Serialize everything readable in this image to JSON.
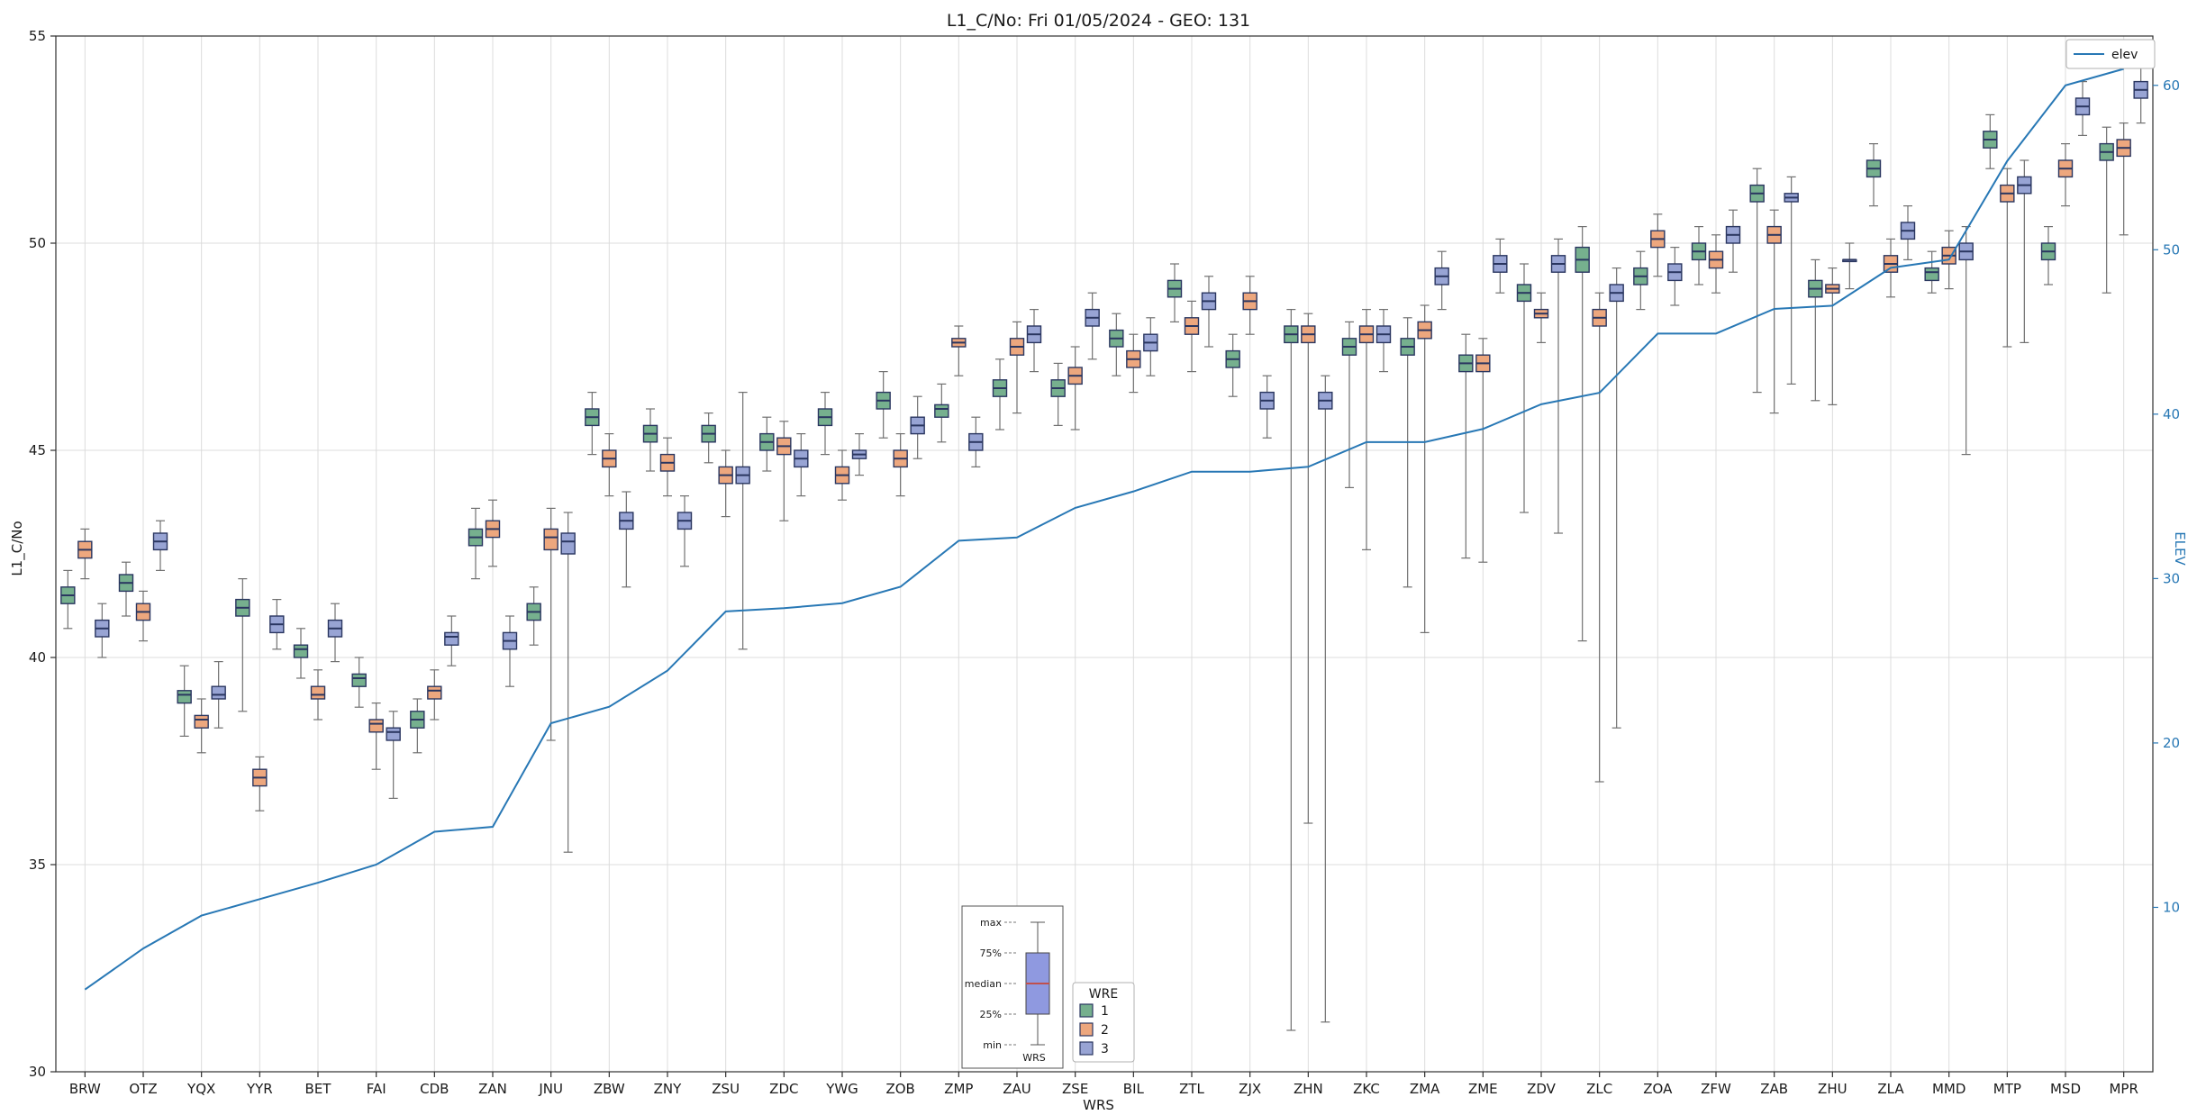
{
  "chart_data": {
    "type": "boxplot",
    "title": "L1_C/No: Fri 01/05/2024 - GEO: 131",
    "xlabel": "WRS",
    "ylabel": "L1_C/No",
    "y2label": "ELEV",
    "ylim": [
      30,
      55
    ],
    "y2lim": [
      0,
      63
    ],
    "yticks_left": [
      30,
      35,
      40,
      45,
      50,
      55
    ],
    "yticks_right": [
      10,
      20,
      30,
      40,
      50,
      60
    ],
    "grid": true,
    "categories": [
      "BRW",
      "OTZ",
      "YQX",
      "YYR",
      "BET",
      "FAI",
      "CDB",
      "ZAN",
      "JNU",
      "ZBW",
      "ZNY",
      "ZSU",
      "ZDC",
      "YWG",
      "ZOB",
      "ZMP",
      "ZAU",
      "ZSE",
      "BIL",
      "ZTL",
      "ZJX",
      "ZHN",
      "ZKC",
      "ZMA",
      "ZME",
      "ZDV",
      "ZLC",
      "ZOA",
      "ZFW",
      "ZAB",
      "ZHU",
      "ZLA",
      "MMD",
      "MTP",
      "MSD",
      "MPR"
    ],
    "series": [
      {
        "name": "1",
        "color": "#76b08e",
        "boxes": [
          [
            40.7,
            41.3,
            41.5,
            41.7,
            42.1
          ],
          [
            41.0,
            41.6,
            41.8,
            42.0,
            42.3
          ],
          [
            38.1,
            38.9,
            39.1,
            39.2,
            39.8
          ],
          [
            38.7,
            41.0,
            41.2,
            41.4,
            41.9
          ],
          [
            39.5,
            40.0,
            40.2,
            40.3,
            40.7
          ],
          [
            38.8,
            39.3,
            39.5,
            39.6,
            40.0
          ],
          [
            37.7,
            38.3,
            38.5,
            38.7,
            39.0
          ],
          [
            41.9,
            42.7,
            42.9,
            43.1,
            43.6
          ],
          [
            40.3,
            40.9,
            41.1,
            41.3,
            41.7
          ],
          [
            44.9,
            45.6,
            45.8,
            46.0,
            46.4
          ],
          [
            44.5,
            45.2,
            45.4,
            45.6,
            46.0
          ],
          [
            44.7,
            45.2,
            45.4,
            45.6,
            45.9
          ],
          [
            44.5,
            45.0,
            45.2,
            45.4,
            45.8
          ],
          [
            44.9,
            45.6,
            45.8,
            46.0,
            46.4
          ],
          [
            45.3,
            46.0,
            46.2,
            46.4,
            46.9
          ],
          [
            45.2,
            45.8,
            46.0,
            46.1,
            46.6
          ],
          [
            45.5,
            46.3,
            46.5,
            46.7,
            47.2
          ],
          [
            45.6,
            46.3,
            46.5,
            46.7,
            47.1
          ],
          [
            46.8,
            47.5,
            47.7,
            47.9,
            48.3
          ],
          [
            48.1,
            48.7,
            48.9,
            49.1,
            49.5
          ],
          [
            46.3,
            47.0,
            47.2,
            47.4,
            47.8
          ],
          [
            31.0,
            47.6,
            47.8,
            48.0,
            48.4
          ],
          [
            44.1,
            47.3,
            47.5,
            47.7,
            48.1
          ],
          [
            41.7,
            47.3,
            47.5,
            47.7,
            48.2
          ],
          [
            42.4,
            46.9,
            47.1,
            47.3,
            47.8
          ],
          [
            43.5,
            48.6,
            48.8,
            49.0,
            49.5
          ],
          [
            40.4,
            49.3,
            49.6,
            49.9,
            50.4
          ],
          [
            48.4,
            49.0,
            49.2,
            49.4,
            49.8
          ],
          [
            49.0,
            49.6,
            49.8,
            50.0,
            50.4
          ],
          [
            46.4,
            51.0,
            51.2,
            51.4,
            51.8
          ],
          [
            46.2,
            48.7,
            48.9,
            49.1,
            49.6
          ],
          [
            50.9,
            51.6,
            51.8,
            52.0,
            52.4
          ],
          [
            48.8,
            49.1,
            49.3,
            49.4,
            49.8
          ],
          [
            51.8,
            52.3,
            52.5,
            52.7,
            53.1
          ],
          [
            49.0,
            49.6,
            49.8,
            50.0,
            50.4
          ],
          [
            48.8,
            52.0,
            52.2,
            52.4,
            52.8
          ]
        ]
      },
      {
        "name": "2",
        "color": "#eda77e",
        "boxes": [
          [
            41.9,
            42.4,
            42.6,
            42.8,
            43.1
          ],
          [
            40.4,
            40.9,
            41.1,
            41.3,
            41.6
          ],
          [
            37.7,
            38.3,
            38.5,
            38.6,
            39.0
          ],
          [
            36.3,
            36.9,
            37.1,
            37.3,
            37.6
          ],
          [
            38.5,
            39.0,
            39.1,
            39.3,
            39.7
          ],
          [
            37.3,
            38.2,
            38.4,
            38.5,
            38.9
          ],
          [
            38.5,
            39.0,
            39.2,
            39.3,
            39.7
          ],
          [
            42.2,
            42.9,
            43.1,
            43.3,
            43.8
          ],
          [
            38.0,
            42.6,
            42.9,
            43.1,
            43.6
          ],
          [
            43.9,
            44.6,
            44.8,
            45.0,
            45.4
          ],
          [
            43.9,
            44.5,
            44.7,
            44.9,
            45.3
          ],
          [
            43.4,
            44.2,
            44.4,
            44.6,
            45.0
          ],
          [
            43.3,
            44.9,
            45.1,
            45.3,
            45.7
          ],
          [
            43.8,
            44.2,
            44.4,
            44.6,
            45.0
          ],
          [
            43.9,
            44.6,
            44.8,
            45.0,
            45.4
          ],
          [
            46.8,
            47.5,
            47.6,
            47.7,
            48.0
          ],
          [
            45.9,
            47.3,
            47.5,
            47.7,
            48.1
          ],
          [
            45.5,
            46.6,
            46.8,
            47.0,
            47.5
          ],
          [
            46.4,
            47.0,
            47.2,
            47.4,
            47.8
          ],
          [
            46.9,
            47.8,
            48.0,
            48.2,
            48.6
          ],
          [
            47.8,
            48.4,
            48.6,
            48.8,
            49.2
          ],
          [
            36.0,
            47.6,
            47.8,
            48.0,
            48.3
          ],
          [
            42.6,
            47.6,
            47.8,
            48.0,
            48.4
          ],
          [
            40.6,
            47.7,
            47.9,
            48.1,
            48.5
          ],
          [
            42.3,
            46.9,
            47.1,
            47.3,
            47.7
          ],
          [
            47.6,
            48.2,
            48.3,
            48.4,
            48.8
          ],
          [
            37.0,
            48.0,
            48.2,
            48.4,
            48.8
          ],
          [
            49.2,
            49.9,
            50.1,
            50.3,
            50.7
          ],
          [
            48.8,
            49.4,
            49.6,
            49.8,
            50.2
          ],
          [
            45.9,
            50.0,
            50.2,
            50.4,
            50.8
          ],
          [
            46.1,
            48.8,
            48.9,
            49.0,
            49.4
          ],
          [
            48.7,
            49.3,
            49.5,
            49.7,
            50.1
          ],
          [
            48.9,
            49.5,
            49.7,
            49.9,
            50.3
          ],
          [
            47.5,
            51.0,
            51.2,
            51.4,
            51.8
          ],
          [
            50.9,
            51.6,
            51.8,
            52.0,
            52.4
          ],
          [
            50.2,
            52.1,
            52.3,
            52.5,
            52.9
          ]
        ]
      },
      {
        "name": "3",
        "color": "#98a4d4",
        "boxes": [
          [
            40.0,
            40.5,
            40.7,
            40.9,
            41.3
          ],
          [
            42.1,
            42.6,
            42.8,
            43.0,
            43.3
          ],
          [
            38.3,
            39.0,
            39.1,
            39.3,
            39.9
          ],
          [
            40.2,
            40.6,
            40.8,
            41.0,
            41.4
          ],
          [
            39.9,
            40.5,
            40.7,
            40.9,
            41.3
          ],
          [
            36.6,
            38.0,
            38.2,
            38.3,
            38.7
          ],
          [
            39.8,
            40.3,
            40.5,
            40.6,
            41.0
          ],
          [
            39.3,
            40.2,
            40.4,
            40.6,
            41.0
          ],
          [
            35.3,
            42.5,
            42.8,
            43.0,
            43.5
          ],
          [
            41.7,
            43.1,
            43.3,
            43.5,
            44.0
          ],
          [
            42.2,
            43.1,
            43.3,
            43.5,
            43.9
          ],
          [
            40.2,
            44.2,
            44.4,
            44.6,
            46.4
          ],
          [
            43.9,
            44.6,
            44.8,
            45.0,
            45.4
          ],
          [
            44.4,
            44.8,
            44.9,
            45.0,
            45.4
          ],
          [
            44.8,
            45.4,
            45.6,
            45.8,
            46.3
          ],
          [
            44.6,
            45.0,
            45.2,
            45.4,
            45.8
          ],
          [
            46.9,
            47.6,
            47.8,
            48.0,
            48.4
          ],
          [
            47.2,
            48.0,
            48.2,
            48.4,
            48.8
          ],
          [
            46.8,
            47.4,
            47.6,
            47.8,
            48.2
          ],
          [
            47.5,
            48.4,
            48.6,
            48.8,
            49.2
          ],
          [
            45.3,
            46.0,
            46.2,
            46.4,
            46.8
          ],
          [
            31.2,
            46.0,
            46.2,
            46.4,
            46.8
          ],
          [
            46.9,
            47.6,
            47.8,
            48.0,
            48.4
          ],
          [
            48.4,
            49.0,
            49.2,
            49.4,
            49.8
          ],
          [
            48.8,
            49.3,
            49.5,
            49.7,
            50.1
          ],
          [
            43.0,
            49.3,
            49.5,
            49.7,
            50.1
          ],
          [
            38.3,
            48.6,
            48.8,
            49.0,
            49.4
          ],
          [
            48.5,
            49.1,
            49.3,
            49.5,
            49.9
          ],
          [
            49.3,
            50.0,
            50.2,
            50.4,
            50.8
          ],
          [
            46.6,
            51.0,
            51.1,
            51.2,
            51.6
          ],
          [
            48.9,
            49.6,
            49.6,
            49.6,
            50.0
          ],
          [
            49.6,
            50.1,
            50.3,
            50.5,
            50.9
          ],
          [
            44.9,
            49.6,
            49.8,
            50.0,
            50.4
          ],
          [
            47.6,
            51.2,
            51.4,
            51.6,
            52.0
          ],
          [
            52.6,
            53.1,
            53.3,
            53.5,
            53.9
          ],
          [
            52.9,
            53.5,
            53.7,
            53.9,
            54.3
          ]
        ]
      }
    ],
    "elev_line": {
      "name": "elev",
      "color": "#2878b5",
      "values": [
        5.0,
        7.5,
        9.5,
        10.5,
        11.5,
        12.6,
        14.6,
        14.9,
        21.2,
        22.2,
        24.4,
        28.0,
        28.2,
        28.5,
        29.5,
        32.3,
        32.5,
        34.3,
        35.3,
        36.5,
        36.5,
        36.8,
        38.3,
        38.3,
        39.1,
        40.6,
        41.3,
        44.9,
        44.9,
        46.4,
        46.6,
        48.9,
        49.4,
        55.4,
        60.0,
        61.0
      ]
    },
    "legend": {
      "title": "WRE",
      "entries": [
        "1",
        "2",
        "3"
      ],
      "position": "lower-center"
    },
    "line_legend": {
      "label": "elev",
      "position": "upper-right"
    },
    "box_anatomy_legend": {
      "labels": [
        "max",
        "75%",
        "median",
        "25%",
        "min"
      ],
      "xlabel": "WRS",
      "box_color": "#8f99e0",
      "median_color": "#c0504d"
    },
    "colors": {
      "box_edge": "#2a3660",
      "whisker": "#707070",
      "grid": "#dcdcdc",
      "axis": "#2f2f2f",
      "right_axis_text": "#2878b5"
    }
  }
}
